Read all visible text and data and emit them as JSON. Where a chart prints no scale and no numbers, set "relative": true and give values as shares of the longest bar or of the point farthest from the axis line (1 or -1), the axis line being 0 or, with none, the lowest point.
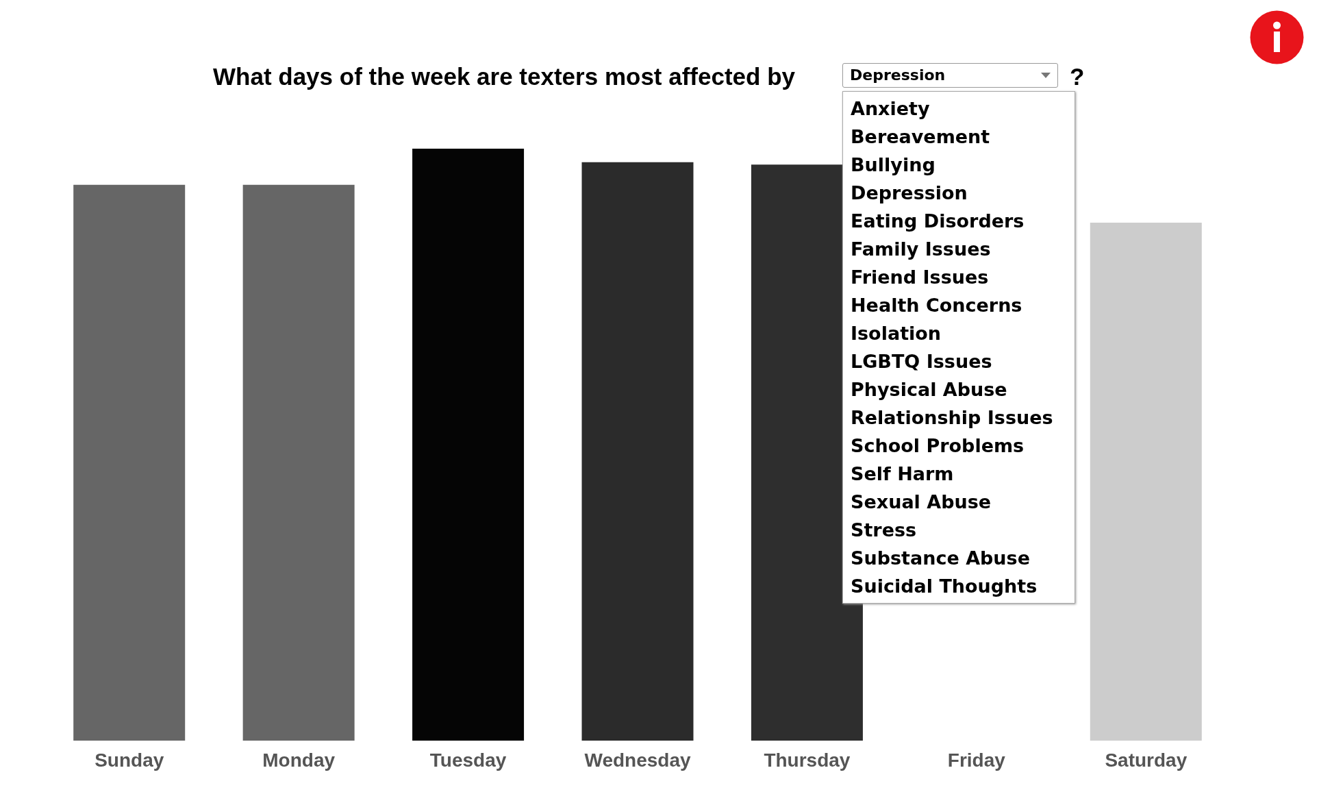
{
  "chart_data": {
    "type": "bar",
    "title": "What days of the week are texters most affected by",
    "categories": [
      "Sunday",
      "Monday",
      "Tuesday",
      "Wednesday",
      "Thursday",
      "Friday",
      "Saturday"
    ],
    "values": [
      0.939,
      0.939,
      1,
      0.977,
      0.973,
      null,
      0.875
    ],
    "colors": [
      "#666666",
      "#666666",
      "#050505",
      "#2b2b2b",
      "#2e2e2e",
      "#858585",
      "#cccccc"
    ],
    "relative": true,
    "annotations": [
      "Depression",
      "?",
      "Anxiety",
      "Bereavement",
      "Bullying",
      "Depression",
      "Eating Disorders",
      "Family Issues",
      "Friend Issues",
      "Health Concerns",
      "Isolation",
      "LGBTQ Issues",
      "Physical Abuse",
      "Relationship Issues",
      "School Problems",
      "Self Harm",
      "Sexual Abuse",
      "Stress",
      "Substance Abuse",
      "Suicidal Thoughts"
    ]
  }
}
